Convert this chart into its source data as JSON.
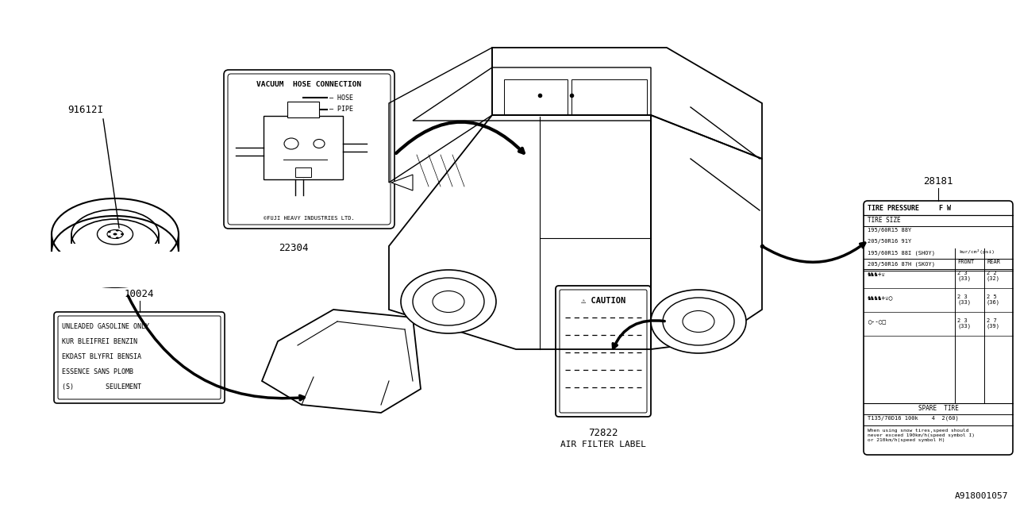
{
  "bg_color": "#ffffff",
  "line_color": "#000000",
  "fig_width": 12.8,
  "fig_height": 6.4,
  "part_numbers": {
    "spare_tire": "91612I",
    "fuel_label": "10024",
    "vacuum_label": "22304",
    "caution_label": "72822",
    "tire_pressure_label": "28181"
  },
  "bottom_labels": {
    "caution_sub": "AIR FILTER LABEL",
    "doc_num": "A918001057"
  },
  "vacuum_label_title": "VACUUM  HOSE CONNECTION",
  "vacuum_legend_hose": "— HOSE",
  "vacuum_legend_pipe": "— PIPE",
  "vacuum_footer": "©FUJI HEAVY INDUSTRIES LTD.",
  "fuel_label_lines": [
    "UNLEADED GASOLINE ONLY",
    "KUR BLEIFREI BENZIN",
    "EKDAST BLYFRI BENSIA",
    "ESSENCE SANS PLOMB",
    "(S)        SEULEMENT"
  ],
  "caution_title": "⚠ CAUTION",
  "tire_pressure_header": "TIRE PRESSURE     F W",
  "tire_size_header": "TIRE SIZE",
  "tire_sizes_left": [
    "195/60R15 88Y",
    "205/50R16 91Y"
  ],
  "tire_sizes_right_left": [
    "195/60R15 88I (SHOY)",
    "205/50R16 87H (SKOY)"
  ],
  "pressure_unit": "kur/cm²(psi)",
  "spare_tire_label": "SPARE  TIRE",
  "spare_tire_spec": "T135/70D16 100k    4  2(60)",
  "tire_note": "When using snow tires,speed should\nnever exceed 190km/h(speed symbol I)\nor 210km/h(speed symbol H)"
}
